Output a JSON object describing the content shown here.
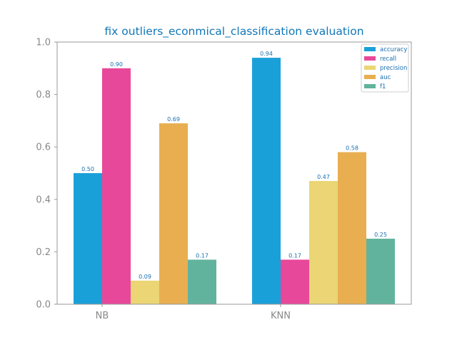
{
  "chart_data": {
    "type": "bar",
    "title": "fix outliers_econmical_classification evaluation",
    "xlabel": "",
    "ylabel": "",
    "categories": [
      "NB",
      "KNN"
    ],
    "ylim": [
      0,
      1.0
    ],
    "yticks": [
      "0.0",
      "0.2",
      "0.4",
      "0.6",
      "0.8",
      "1.0"
    ],
    "series": [
      {
        "name": "accuracy",
        "values": [
          0.5,
          0.94
        ],
        "labels": [
          "0.50",
          "0.94"
        ],
        "color": "#1aa0d8"
      },
      {
        "name": "recall",
        "values": [
          0.9,
          0.17
        ],
        "labels": [
          "0.90",
          "0.17"
        ],
        "color": "#e8489a"
      },
      {
        "name": "precision",
        "values": [
          0.09,
          0.47
        ],
        "labels": [
          "0.09",
          "0.47"
        ],
        "color": "#ebd574"
      },
      {
        "name": "auc",
        "values": [
          0.69,
          0.58
        ],
        "labels": [
          "0.69",
          "0.58"
        ],
        "color": "#e8ae50"
      },
      {
        "name": "f1",
        "values": [
          0.17,
          0.25
        ],
        "labels": [
          "0.17",
          "0.25"
        ],
        "color": "#62b39d"
      }
    ],
    "grid": false,
    "legend_position": "top-right",
    "colors": {
      "title": "#1077b8",
      "label": "#1a6fb0",
      "axis": "#999999",
      "tick_text": "#888888"
    }
  }
}
